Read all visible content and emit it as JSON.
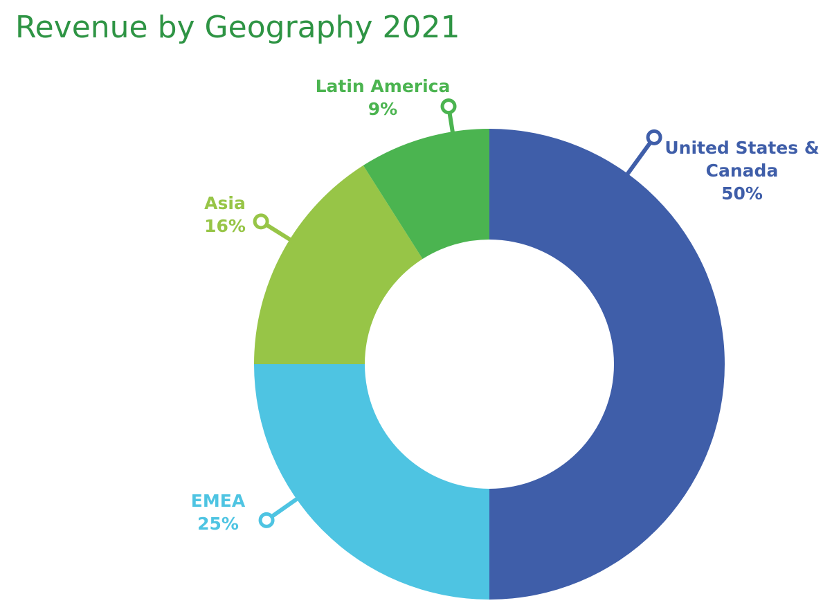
{
  "chart_data": {
    "type": "pie",
    "variant": "donut",
    "title": "Revenue by Geography 2021",
    "unit": "%",
    "slices": [
      {
        "name": "United States & Canada",
        "label_lines": [
          "United States &",
          "Canada"
        ],
        "value": 50,
        "value_label": "50%",
        "color": "#3f5ea9"
      },
      {
        "name": "EMEA",
        "label_lines": [
          "EMEA"
        ],
        "value": 25,
        "value_label": "25%",
        "color": "#4ec4e2"
      },
      {
        "name": "Asia",
        "label_lines": [
          "Asia"
        ],
        "value": 16,
        "value_label": "16%",
        "color": "#97c547"
      },
      {
        "name": "Latin America",
        "label_lines": [
          "Latin America"
        ],
        "value": 9,
        "value_label": "9%",
        "color": "#4bb450"
      }
    ]
  },
  "colors": {
    "title": "#2e9444",
    "background": "#ffffff"
  }
}
